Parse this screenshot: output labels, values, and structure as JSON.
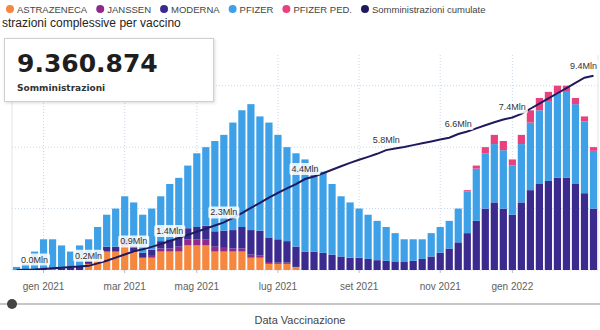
{
  "chart_data": {
    "type": "bar",
    "title": "strazioni complessive per vaccino",
    "x_label": "Data Vaccinazione",
    "stacked": true,
    "grid": true,
    "legend": "top",
    "tick_labels": "x",
    "ylim": [
      0,
      0.35
    ],
    "yticks": [
      0,
      0.1,
      0.2,
      0.3
    ],
    "y2lim": [
      0,
      10.4
    ],
    "categories": [
      null,
      null,
      null,
      "gen 2021",
      null,
      null,
      null,
      null,
      null,
      null,
      null,
      null,
      "mar 2021",
      null,
      null,
      null,
      null,
      null,
      null,
      null,
      "mag 2021",
      null,
      null,
      null,
      null,
      null,
      null,
      null,
      null,
      "lug 2021",
      null,
      null,
      null,
      null,
      null,
      null,
      null,
      null,
      "set 2021",
      null,
      null,
      null,
      null,
      null,
      null,
      null,
      null,
      "nov 2021",
      null,
      null,
      null,
      null,
      null,
      null,
      null,
      "gen 2022",
      null,
      null,
      null,
      null,
      null,
      null,
      null,
      null,
      null
    ],
    "series": [
      {
        "name": "ASTRAZENECA",
        "type": "bar",
        "color": "#f5873f",
        "values": [
          0,
          0,
          0,
          0,
          0,
          0,
          0,
          0,
          0.01,
          0.02,
          0.03,
          0.03,
          0.04,
          0.03,
          0.02,
          0.02,
          0.03,
          0.03,
          0.03,
          0.04,
          0.04,
          0.04,
          0.03,
          0.03,
          0.03,
          0.03,
          0.02,
          0.02,
          0.01,
          0.01,
          0.01,
          0.005,
          0,
          0,
          0,
          0,
          0,
          0,
          0,
          0,
          0,
          0,
          0,
          0,
          0,
          0,
          0,
          0,
          0,
          0,
          0,
          0,
          0,
          0,
          0,
          0,
          0,
          0,
          0,
          0,
          0,
          0,
          0,
          0,
          0
        ]
      },
      {
        "name": "JANSSEN",
        "type": "bar",
        "color": "#8e2a8c",
        "values": [
          0,
          0,
          0,
          0,
          0,
          0,
          0,
          0,
          0,
          0,
          0,
          0,
          0,
          0,
          0,
          0.003,
          0.005,
          0.005,
          0.008,
          0.01,
          0.01,
          0.01,
          0.008,
          0.006,
          0.005,
          0.005,
          0.005,
          0.004,
          0.003,
          0.002,
          0.002,
          0,
          0,
          0,
          0,
          0,
          0,
          0,
          0,
          0,
          0,
          0,
          0,
          0,
          0,
          0,
          0,
          0,
          0,
          0,
          0,
          0,
          0,
          0,
          0,
          0,
          0,
          0,
          0,
          0,
          0,
          0,
          0,
          0,
          0
        ]
      },
      {
        "name": "MODERNA",
        "type": "bar",
        "color": "#3b2b8f",
        "values": [
          0,
          0,
          0,
          0,
          0,
          0.003,
          0.004,
          0.005,
          0.005,
          0.006,
          0.008,
          0.008,
          0.01,
          0.01,
          0.008,
          0.01,
          0.012,
          0.015,
          0.015,
          0.018,
          0.02,
          0.022,
          0.025,
          0.028,
          0.03,
          0.035,
          0.04,
          0.04,
          0.04,
          0.038,
          0.035,
          0.033,
          0.03,
          0.03,
          0.028,
          0.025,
          0.022,
          0.02,
          0.02,
          0.018,
          0.016,
          0.015,
          0.014,
          0.013,
          0.015,
          0.018,
          0.022,
          0.028,
          0.035,
          0.045,
          0.06,
          0.08,
          0.1,
          0.11,
          0.1,
          0.09,
          0.11,
          0.13,
          0.14,
          0.145,
          0.15,
          0.15,
          0.14,
          0.125,
          0.1
        ]
      },
      {
        "name": "PFIZER",
        "type": "bar",
        "color": "#3ea0e6",
        "values": [
          0.005,
          0.01,
          0.03,
          0.05,
          0.05,
          0.037,
          0.026,
          0.035,
          0.035,
          0.044,
          0.052,
          0.062,
          0.07,
          0.07,
          0.062,
          0.067,
          0.073,
          0.09,
          0.097,
          0.102,
          0.12,
          0.128,
          0.147,
          0.156,
          0.175,
          0.19,
          0.205,
          0.186,
          0.187,
          0.17,
          0.153,
          0.152,
          0.15,
          0.14,
          0.132,
          0.115,
          0.098,
          0.09,
          0.08,
          0.072,
          0.064,
          0.055,
          0.046,
          0.037,
          0.035,
          0.032,
          0.038,
          0.042,
          0.045,
          0.055,
          0.068,
          0.085,
          0.09,
          0.095,
          0.095,
          0.08,
          0.095,
          0.11,
          0.12,
          0.13,
          0.138,
          0.14,
          0.13,
          0.117,
          0.094
        ]
      },
      {
        "name": "PFIZER PED.",
        "type": "bar",
        "color": "#e8417f",
        "values": [
          0,
          0,
          0,
          0,
          0,
          0,
          0,
          0,
          0,
          0,
          0,
          0,
          0,
          0,
          0,
          0,
          0,
          0,
          0,
          0,
          0,
          0,
          0,
          0,
          0,
          0,
          0,
          0,
          0,
          0,
          0,
          0,
          0,
          0,
          0,
          0,
          0,
          0,
          0,
          0,
          0,
          0,
          0,
          0,
          0,
          0,
          0,
          0,
          0,
          0,
          0.002,
          0.005,
          0.01,
          0.015,
          0.015,
          0.01,
          0.015,
          0.02,
          0.02,
          0.015,
          0.012,
          0.01,
          0.01,
          0.008,
          0.006
        ]
      },
      {
        "name": "Somministrazioni cumulate",
        "type": "line",
        "axis": "y2",
        "color": "#1f1a5e",
        "data_labels": true,
        "values": [
          0,
          0.01,
          0.02,
          0.05,
          0.08,
          0.11,
          0.14,
          0.17,
          0.2,
          0.32,
          0.45,
          0.6,
          0.75,
          0.9,
          1.0,
          1.12,
          1.25,
          1.4,
          1.55,
          1.7,
          1.85,
          2.0,
          2.15,
          2.3,
          2.52,
          2.75,
          3.0,
          3.25,
          3.5,
          3.73,
          3.95,
          4.15,
          4.4,
          4.52,
          4.68,
          4.85,
          5.02,
          5.18,
          5.33,
          5.47,
          5.62,
          5.8,
          5.88,
          5.95,
          6.04,
          6.13,
          6.22,
          6.31,
          6.4,
          6.58,
          6.7,
          6.85,
          7.0,
          7.15,
          7.28,
          7.38,
          7.55,
          7.8,
          8.05,
          8.3,
          8.55,
          8.8,
          9.05,
          9.3,
          9.4
        ],
        "value_labels": [
          null,
          null,
          "0.0Mln",
          null,
          null,
          null,
          null,
          null,
          "0.2Mln",
          null,
          null,
          null,
          null,
          "0.9Mln",
          null,
          null,
          null,
          "1.4Mln",
          null,
          null,
          null,
          null,
          null,
          "2.3Mln",
          null,
          null,
          null,
          null,
          null,
          null,
          null,
          null,
          "4.4Mln",
          null,
          null,
          null,
          null,
          null,
          null,
          null,
          null,
          "5.8Mln",
          null,
          null,
          null,
          null,
          null,
          null,
          null,
          "6.6Mln",
          null,
          null,
          null,
          null,
          null,
          "7.4Mln",
          null,
          null,
          null,
          null,
          null,
          null,
          null,
          null,
          "9.4Mln"
        ]
      }
    ]
  },
  "card": {
    "value": "9.360.874",
    "label": "Somministrazioni"
  }
}
